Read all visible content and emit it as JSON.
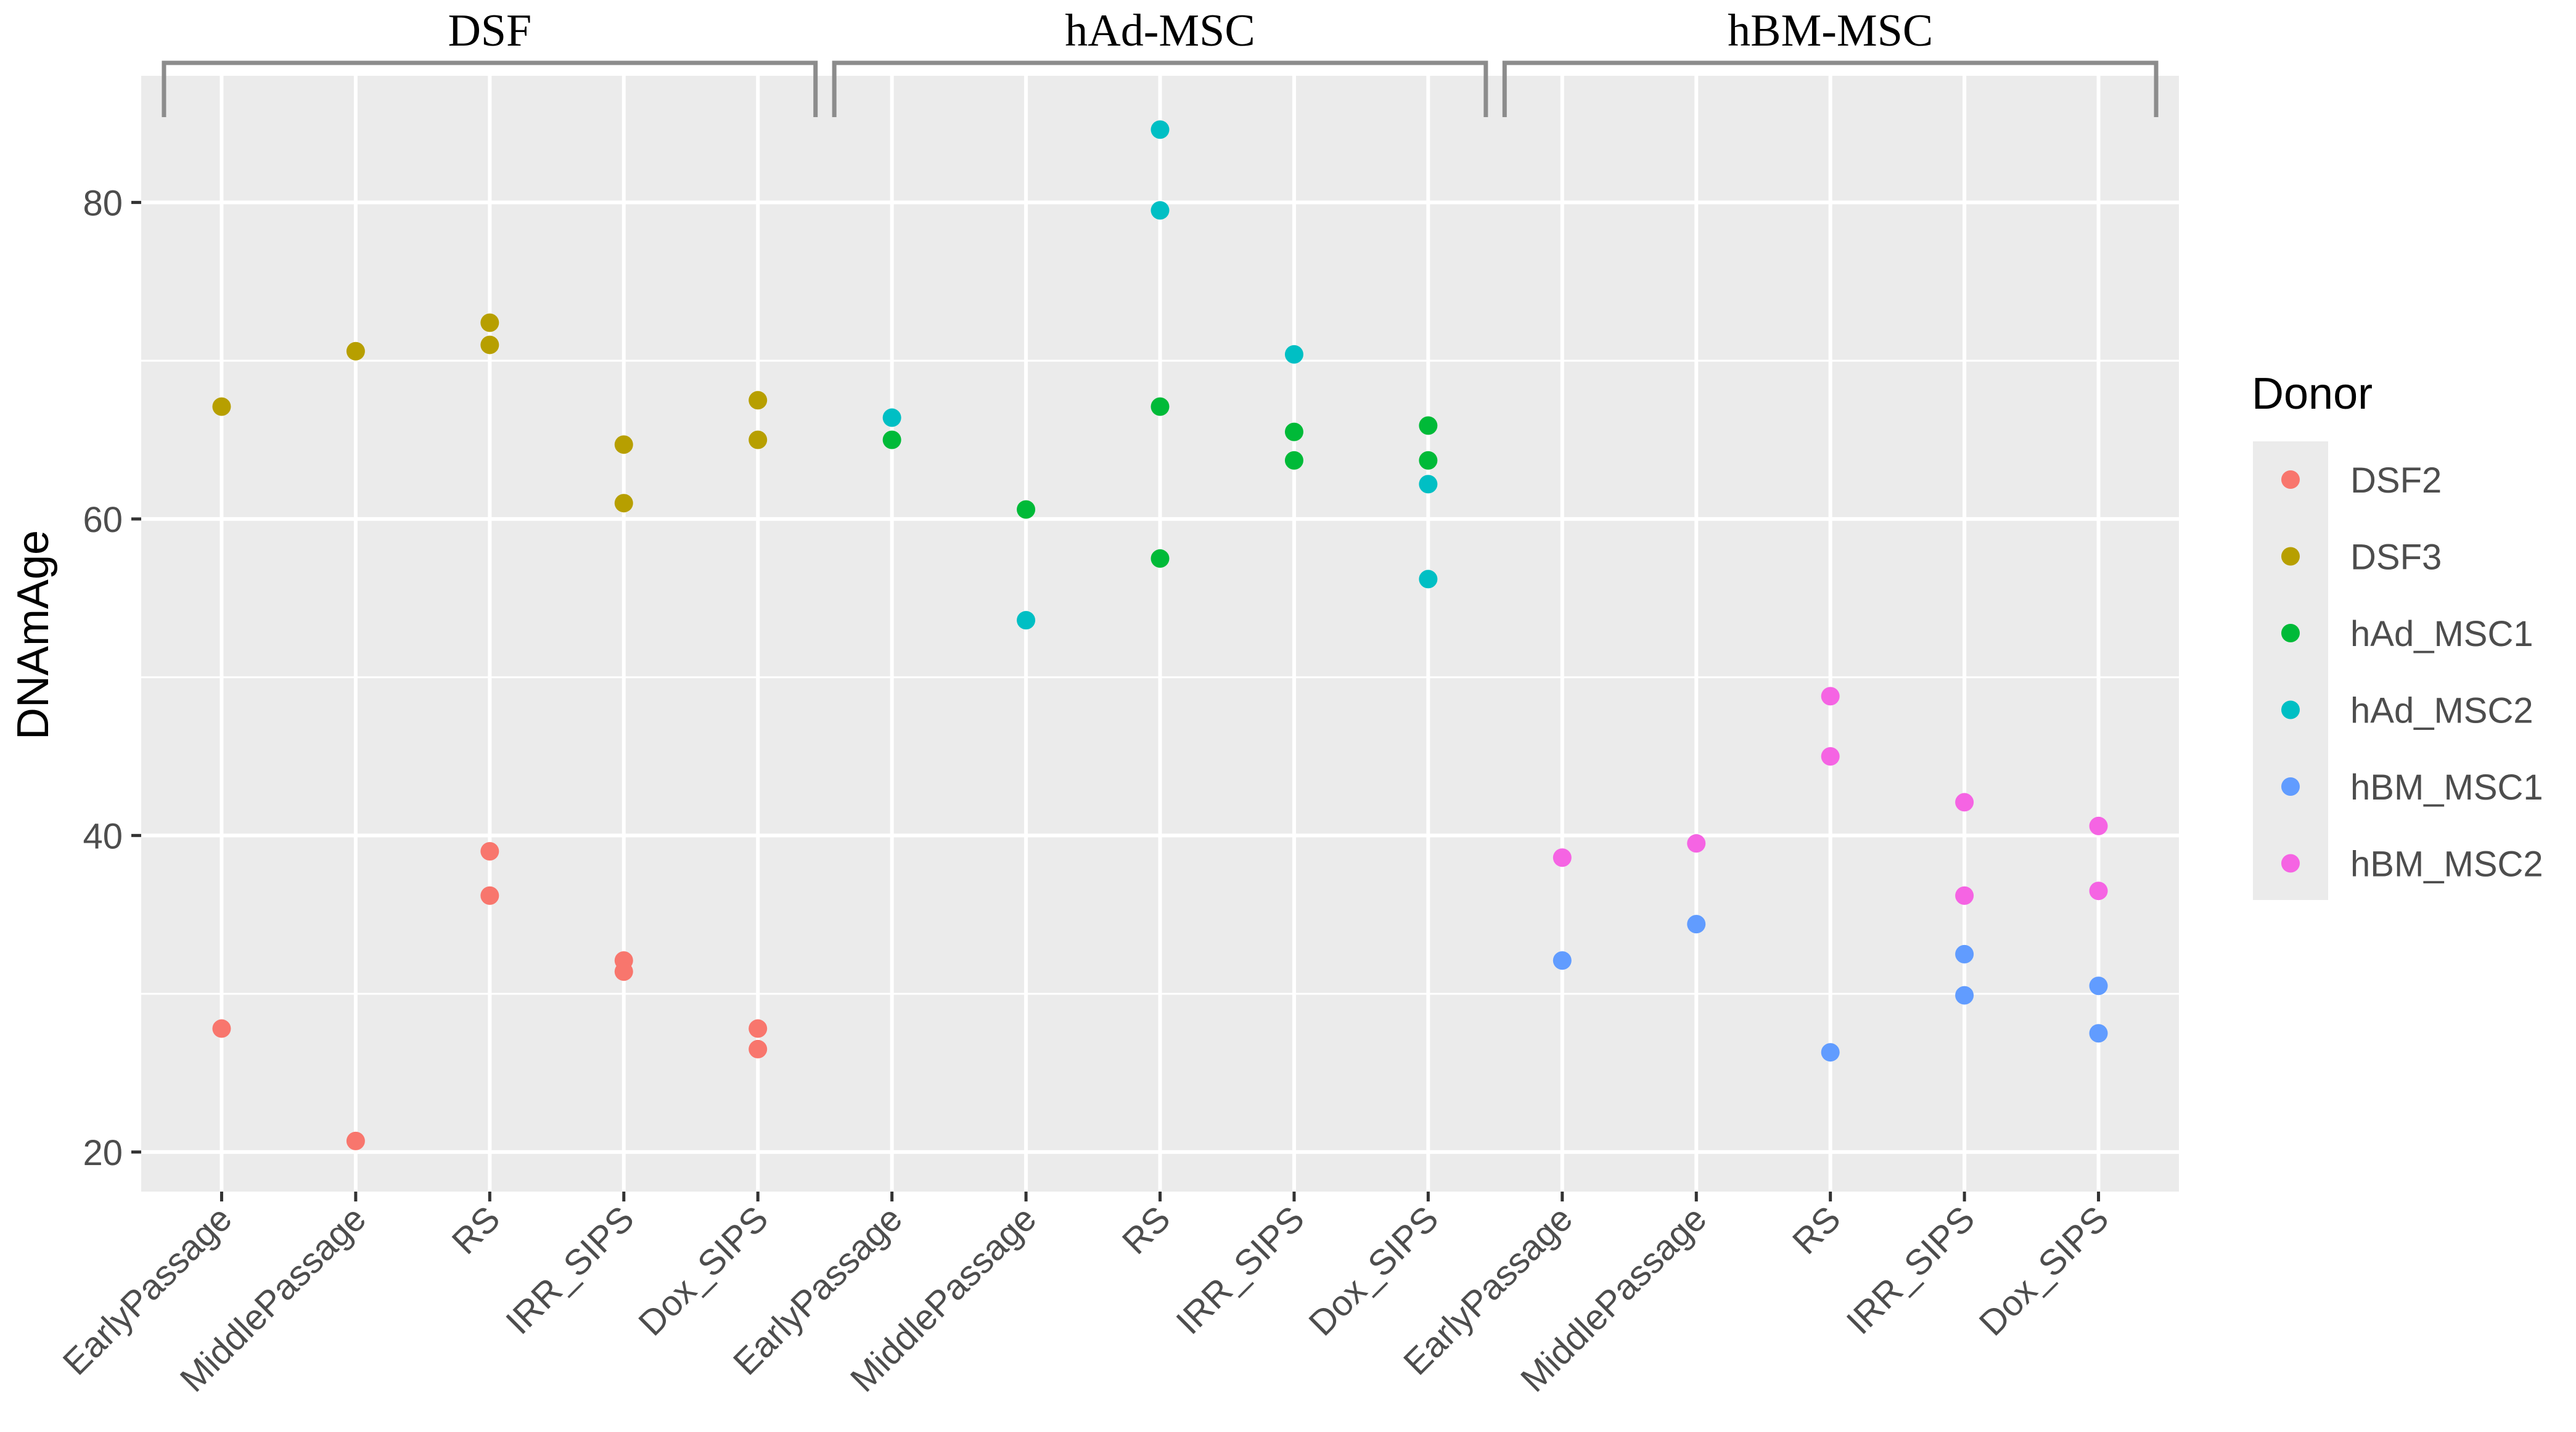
{
  "chart_data": {
    "type": "scatter",
    "ylabel": "DNAmAge",
    "xlabel": "",
    "ylim": [
      17.5,
      88
    ],
    "yticks": [
      20,
      40,
      60,
      80
    ],
    "grid": true,
    "legend_position": "right",
    "legend_title": "Donor",
    "categories": [
      "EarlyPassage",
      "MiddlePassage",
      "RS",
      "IRR_SIPS",
      "Dox_SIPS",
      "EarlyPassage",
      "MiddlePassage",
      "RS",
      "IRR_SIPS",
      "Dox_SIPS",
      "EarlyPassage",
      "MiddlePassage",
      "RS",
      "IRR_SIPS",
      "Dox_SIPS"
    ],
    "groups": [
      {
        "label": "DSF",
        "start": 0,
        "end": 4
      },
      {
        "label": "hAd-MSC",
        "start": 5,
        "end": 9
      },
      {
        "label": "hBM-MSC",
        "start": 10,
        "end": 14
      }
    ],
    "series": [
      {
        "name": "DSF2",
        "color": "#F8766D",
        "points": [
          [
            0,
            27.8
          ],
          [
            1,
            20.7
          ],
          [
            2,
            39.0
          ],
          [
            2,
            36.2
          ],
          [
            3,
            32.1
          ],
          [
            3,
            31.4
          ],
          [
            4,
            27.8
          ],
          [
            4,
            26.5
          ]
        ]
      },
      {
        "name": "DSF3",
        "color": "#B79F00",
        "points": [
          [
            0,
            67.1
          ],
          [
            1,
            70.6
          ],
          [
            2,
            72.4
          ],
          [
            2,
            71.0
          ],
          [
            3,
            64.7
          ],
          [
            3,
            61.0
          ],
          [
            4,
            67.5
          ],
          [
            4,
            65.0
          ]
        ]
      },
      {
        "name": "hAd_MSC1",
        "color": "#00BA38",
        "points": [
          [
            5,
            65.0
          ],
          [
            6,
            60.6
          ],
          [
            7,
            67.1
          ],
          [
            7,
            57.5
          ],
          [
            8,
            65.5
          ],
          [
            8,
            63.7
          ],
          [
            9,
            65.9
          ],
          [
            9,
            63.7
          ]
        ]
      },
      {
        "name": "hAd_MSC2",
        "color": "#00BFC4",
        "points": [
          [
            5,
            66.4
          ],
          [
            6,
            53.6
          ],
          [
            7,
            84.6
          ],
          [
            7,
            79.5
          ],
          [
            8,
            70.4
          ],
          [
            9,
            62.2
          ],
          [
            9,
            56.2
          ]
        ]
      },
      {
        "name": "hBM_MSC1",
        "color": "#619CFF",
        "points": [
          [
            10,
            32.1
          ],
          [
            11,
            34.4
          ],
          [
            12,
            26.3
          ],
          [
            13,
            32.5
          ],
          [
            13,
            29.9
          ],
          [
            14,
            30.5
          ],
          [
            14,
            27.5
          ]
        ]
      },
      {
        "name": "hBM_MSC2",
        "color": "#F564E3",
        "points": [
          [
            10,
            38.6
          ],
          [
            11,
            39.5
          ],
          [
            12,
            48.8
          ],
          [
            12,
            45.0
          ],
          [
            13,
            42.1
          ],
          [
            13,
            36.2
          ],
          [
            14,
            40.6
          ],
          [
            14,
            36.5
          ]
        ]
      }
    ]
  }
}
